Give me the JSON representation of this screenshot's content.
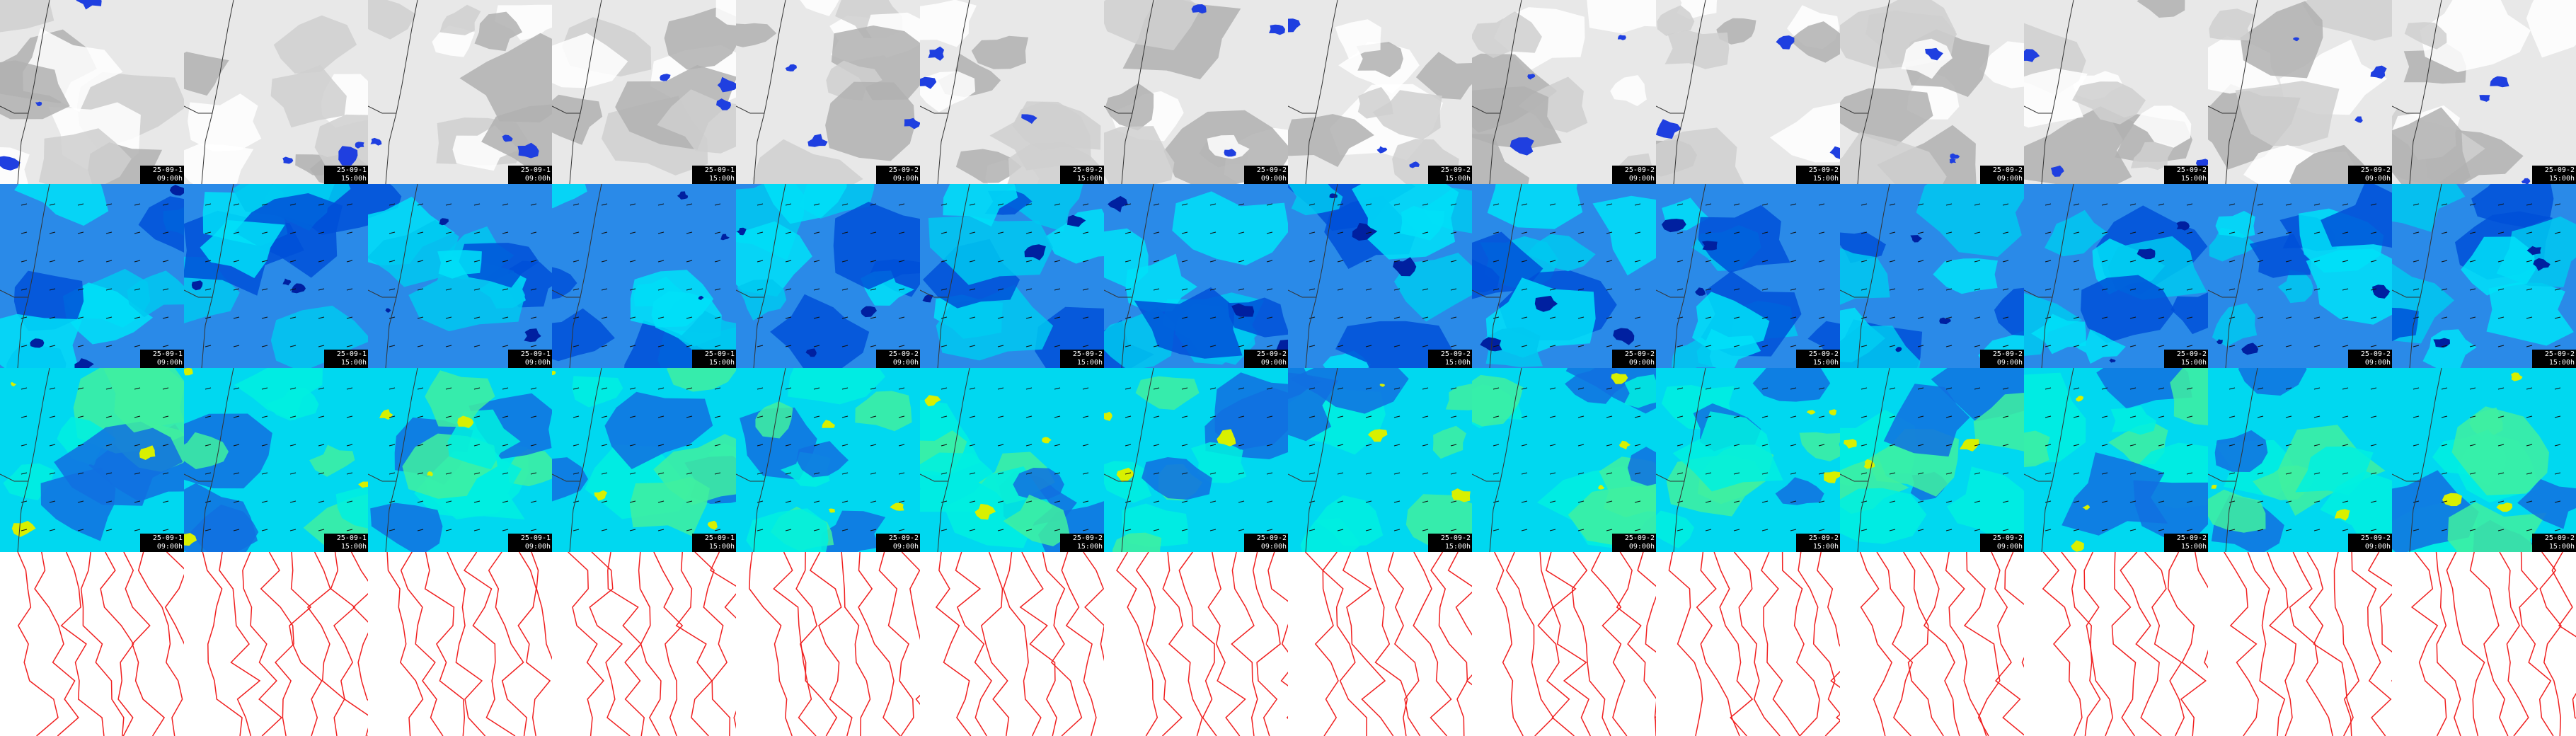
{
  "panels": [
    {
      "date": "25-09-1",
      "time": "09:00h"
    },
    {
      "date": "25-09-1",
      "time": "15:00h"
    },
    {
      "date": "25-09-1",
      "time": "09:00h"
    },
    {
      "date": "25-09-1",
      "time": "15:00h"
    },
    {
      "date": "25-09-2",
      "time": "09:00h"
    },
    {
      "date": "25-09-2",
      "time": "15:00h"
    },
    {
      "date": "25-09-2",
      "time": "09:00h"
    },
    {
      "date": "25-09-2",
      "time": "15:00h"
    },
    {
      "date": "25-09-2",
      "time": "09:00h"
    },
    {
      "date": "25-09-2",
      "time": "15:00h"
    },
    {
      "date": "25-09-2",
      "time": "09:00h"
    },
    {
      "date": "25-09-2",
      "time": "15:00h"
    },
    {
      "date": "25-09-2",
      "time": "09:00h"
    },
    {
      "date": "25-09-2",
      "time": "15:00h"
    }
  ]
}
